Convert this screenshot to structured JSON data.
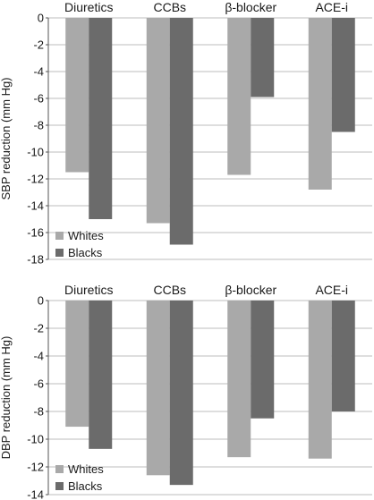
{
  "colors": {
    "whites": "#a9a9a9",
    "blacks": "#6b6b6b",
    "grid": "#bdbdbd",
    "axis": "#555555"
  },
  "chart_data": [
    {
      "type": "bar",
      "categories": [
        "Diuretics",
        "CCBs",
        "β-blocker",
        "ACE-i"
      ],
      "ylabel": "SBP reduction (mm Hg)",
      "xlabel": "",
      "ylim": [
        -18,
        0
      ],
      "yticks": [
        0,
        -2,
        -4,
        -6,
        -8,
        -10,
        -12,
        -14,
        -16,
        -18
      ],
      "grid": true,
      "legend_position": "bottom-left",
      "series": [
        {
          "name": "Whites",
          "values": [
            -11.5,
            -15.3,
            -11.7,
            -12.8
          ]
        },
        {
          "name": "Blacks",
          "values": [
            -15.0,
            -16.9,
            -5.9,
            -8.5
          ]
        }
      ]
    },
    {
      "type": "bar",
      "categories": [
        "Diuretics",
        "CCBs",
        "β-blocker",
        "ACE-i"
      ],
      "ylabel": "DBP reduction (mm Hg)",
      "xlabel": "",
      "ylim": [
        -14,
        0
      ],
      "yticks": [
        0,
        -2,
        -4,
        -6,
        -8,
        -10,
        -12,
        -14
      ],
      "grid": true,
      "legend_position": "bottom-left",
      "series": [
        {
          "name": "Whites",
          "values": [
            -9.1,
            -12.6,
            -11.3,
            -11.4
          ]
        },
        {
          "name": "Blacks",
          "values": [
            -10.7,
            -13.3,
            -8.5,
            -8.0
          ]
        }
      ]
    }
  ]
}
